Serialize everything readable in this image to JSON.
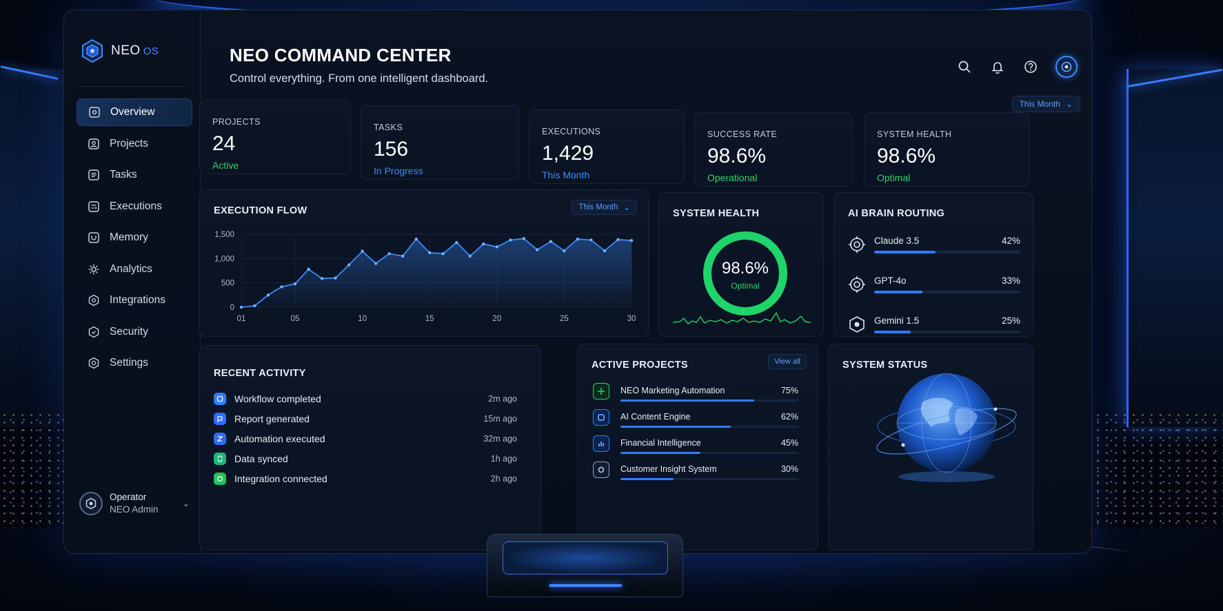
{
  "brand": {
    "name": "NEO",
    "suffix": "OS"
  },
  "sidebar": {
    "items": [
      {
        "label": "Overview",
        "icon": "overview-icon",
        "active": true
      },
      {
        "label": "Projects",
        "icon": "projects-icon",
        "active": false
      },
      {
        "label": "Tasks",
        "icon": "tasks-icon",
        "active": false
      },
      {
        "label": "Executions",
        "icon": "executions-icon",
        "active": false
      },
      {
        "label": "Memory",
        "icon": "memory-icon",
        "active": false
      },
      {
        "label": "Analytics",
        "icon": "analytics-icon",
        "active": false
      },
      {
        "label": "Integrations",
        "icon": "integrations-icon",
        "active": false
      },
      {
        "label": "Security",
        "icon": "security-icon",
        "active": false
      },
      {
        "label": "Settings",
        "icon": "settings-icon",
        "active": false
      }
    ],
    "operator": {
      "role": "Operator",
      "name": "NEO Admin"
    }
  },
  "header": {
    "title": "NEO COMMAND CENTER",
    "subtitle": "Control everything. From one intelligent dashboard.",
    "period": "This Month"
  },
  "stats": [
    {
      "label": "PROJECTS",
      "value": "24",
      "sub": "Active",
      "sub_color": "green"
    },
    {
      "label": "TASKS",
      "value": "156",
      "sub": "In Progress",
      "sub_color": "blue"
    },
    {
      "label": "EXECUTIONS",
      "value": "1,429",
      "sub": "This Month",
      "sub_color": "blue"
    },
    {
      "label": "SUCCESS RATE",
      "value": "98.6%",
      "sub": "Operational",
      "sub_color": "green"
    },
    {
      "label": "SYSTEM HEALTH",
      "value": "98.6%",
      "sub": "Optimal",
      "sub_color": "green"
    }
  ],
  "execution_flow": {
    "title": "EXECUTION FLOW",
    "period": "This Month",
    "chart_data": {
      "type": "area",
      "title": "EXECUTION FLOW",
      "x": [
        1,
        2,
        3,
        4,
        5,
        6,
        7,
        8,
        9,
        10,
        11,
        12,
        13,
        14,
        15,
        16,
        17,
        18,
        19,
        20,
        21,
        22,
        23,
        24,
        25,
        26,
        27,
        28,
        29,
        30
      ],
      "values": [
        0,
        30,
        250,
        420,
        480,
        780,
        590,
        600,
        870,
        1150,
        900,
        1100,
        1050,
        1400,
        1120,
        1100,
        1330,
        1050,
        1300,
        1240,
        1380,
        1410,
        1180,
        1350,
        1160,
        1400,
        1380,
        1160,
        1390,
        1370
      ],
      "xticks": [
        "01",
        "05",
        "10",
        "15",
        "20",
        "25",
        "30"
      ],
      "yticks": [
        "0",
        "500",
        "1,000",
        "1,500"
      ],
      "ylim": [
        0,
        1500
      ],
      "grid": true,
      "color": "#3c8bff"
    }
  },
  "system_health": {
    "title": "SYSTEM HEALTH",
    "value": "98.6%",
    "label": "Optimal",
    "fraction": 0.986,
    "color": "#1fd46a"
  },
  "ai_routing": {
    "title": "AI BRAIN ROUTING",
    "models": [
      {
        "name": "Claude 3.5",
        "pct": "42%",
        "fraction": 0.42
      },
      {
        "name": "GPT-4o",
        "pct": "33%",
        "fraction": 0.33
      },
      {
        "name": "Gemini 1.5",
        "pct": "25%",
        "fraction": 0.25
      }
    ]
  },
  "recent_activity": {
    "title": "RECENT ACTIVITY",
    "items": [
      {
        "text": "Workflow completed",
        "time": "2m ago",
        "icon": "workflow-icon",
        "color": "#2f7cff"
      },
      {
        "text": "Report generated",
        "time": "15m ago",
        "icon": "report-icon",
        "color": "#2f6bff"
      },
      {
        "text": "Automation executed",
        "time": "32m ago",
        "icon": "automation-icon",
        "color": "#2f6bff"
      },
      {
        "text": "Data synced",
        "time": "1h ago",
        "icon": "sync-icon",
        "color": "#1fb87a"
      },
      {
        "text": "Integration connected",
        "time": "2h ago",
        "icon": "integration-icon",
        "color": "#22c25e"
      }
    ]
  },
  "active_projects": {
    "title": "ACTIVE PROJECTS",
    "view_all": "View all",
    "items": [
      {
        "name": "NEO Marketing Automation",
        "pct": "75%",
        "fraction": 0.75,
        "icon_color": "#1fd46a"
      },
      {
        "name": "AI Content Engine",
        "pct": "62%",
        "fraction": 0.62,
        "icon_color": "#2f7cff"
      },
      {
        "name": "Financial Intelligence",
        "pct": "45%",
        "fraction": 0.45,
        "icon_color": "#2f7cff"
      },
      {
        "name": "Customer Insight System",
        "pct": "30%",
        "fraction": 0.3,
        "icon_color": "#8fa3c6"
      }
    ]
  },
  "system_status": {
    "title": "SYSTEM STATUS"
  }
}
